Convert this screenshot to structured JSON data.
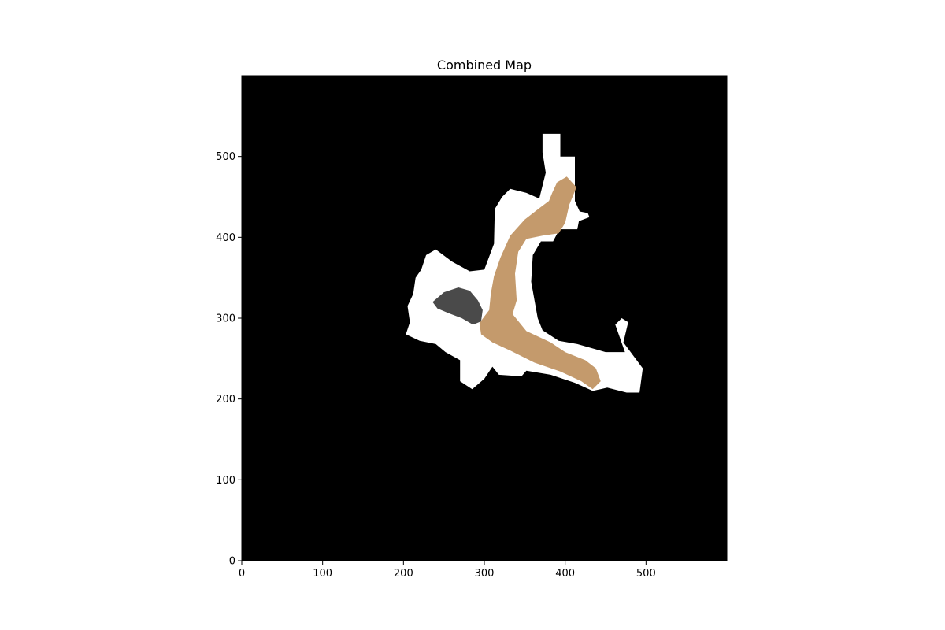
{
  "chart_data": {
    "type": "heatmap",
    "title": "Combined Map",
    "xlabel": "",
    "ylabel": "",
    "xlim": [
      0,
      600
    ],
    "ylim": [
      0,
      600
    ],
    "x_ticks": [
      0,
      100,
      200,
      300,
      400,
      500
    ],
    "y_ticks": [
      0,
      100,
      200,
      300,
      400,
      500
    ],
    "y_origin": "bottom",
    "grid": false,
    "legend": "none",
    "colors": {
      "unexplored": "#000000",
      "free_space": "#ffffff",
      "floor_texture": "#c49a6c",
      "dark_region": "#4a4a4a"
    },
    "regions": [
      {
        "name": "free_space_explored",
        "color": "#ffffff",
        "polygon": [
          [
            372,
            528
          ],
          [
            394,
            528
          ],
          [
            394,
            500
          ],
          [
            412,
            500
          ],
          [
            412,
            445
          ],
          [
            418,
            432
          ],
          [
            428,
            430
          ],
          [
            430,
            425
          ],
          [
            417,
            420
          ],
          [
            415,
            410
          ],
          [
            393,
            410
          ],
          [
            385,
            395
          ],
          [
            370,
            395
          ],
          [
            360,
            378
          ],
          [
            358,
            345
          ],
          [
            366,
            300
          ],
          [
            372,
            285
          ],
          [
            392,
            272
          ],
          [
            415,
            268
          ],
          [
            450,
            258
          ],
          [
            474,
            258
          ],
          [
            462,
            292
          ],
          [
            470,
            300
          ],
          [
            478,
            295
          ],
          [
            472,
            270
          ],
          [
            496,
            238
          ],
          [
            492,
            208
          ],
          [
            476,
            208
          ],
          [
            452,
            214
          ],
          [
            434,
            210
          ],
          [
            412,
            220
          ],
          [
            382,
            230
          ],
          [
            352,
            235
          ],
          [
            346,
            228
          ],
          [
            318,
            230
          ],
          [
            310,
            240
          ],
          [
            300,
            225
          ],
          [
            285,
            212
          ],
          [
            270,
            222
          ],
          [
            270,
            248
          ],
          [
            252,
            258
          ],
          [
            240,
            268
          ],
          [
            220,
            272
          ],
          [
            203,
            280
          ],
          [
            208,
            295
          ],
          [
            205,
            315
          ],
          [
            212,
            330
          ],
          [
            215,
            350
          ],
          [
            222,
            360
          ],
          [
            228,
            378
          ],
          [
            240,
            385
          ],
          [
            260,
            370
          ],
          [
            282,
            358
          ],
          [
            300,
            360
          ],
          [
            312,
            392
          ],
          [
            313,
            435
          ],
          [
            322,
            450
          ],
          [
            332,
            460
          ],
          [
            352,
            455
          ],
          [
            368,
            448
          ],
          [
            376,
            480
          ],
          [
            372,
            505
          ]
        ]
      },
      {
        "name": "mapped_floor_texture",
        "color": "#c49a6c",
        "polygon": [
          [
            390,
            468
          ],
          [
            402,
            475
          ],
          [
            414,
            462
          ],
          [
            405,
            440
          ],
          [
            400,
            418
          ],
          [
            392,
            405
          ],
          [
            372,
            402
          ],
          [
            352,
            398
          ],
          [
            342,
            382
          ],
          [
            338,
            355
          ],
          [
            340,
            322
          ],
          [
            335,
            305
          ],
          [
            352,
            284
          ],
          [
            382,
            270
          ],
          [
            400,
            258
          ],
          [
            425,
            248
          ],
          [
            438,
            238
          ],
          [
            444,
            222
          ],
          [
            434,
            212
          ],
          [
            420,
            222
          ],
          [
            394,
            234
          ],
          [
            362,
            245
          ],
          [
            332,
            260
          ],
          [
            310,
            270
          ],
          [
            296,
            280
          ],
          [
            294,
            294
          ],
          [
            300,
            302
          ],
          [
            306,
            310
          ],
          [
            308,
            330
          ],
          [
            312,
            352
          ],
          [
            320,
            375
          ],
          [
            332,
            402
          ],
          [
            350,
            422
          ],
          [
            368,
            436
          ],
          [
            380,
            445
          ],
          [
            384,
            455
          ]
        ]
      },
      {
        "name": "mapped_dark_region",
        "color": "#4a4a4a",
        "polygon": [
          [
            236,
            320
          ],
          [
            250,
            332
          ],
          [
            268,
            338
          ],
          [
            282,
            334
          ],
          [
            292,
            322
          ],
          [
            298,
            310
          ],
          [
            296,
            296
          ],
          [
            286,
            292
          ],
          [
            272,
            300
          ],
          [
            256,
            306
          ],
          [
            242,
            312
          ]
        ]
      }
    ]
  }
}
